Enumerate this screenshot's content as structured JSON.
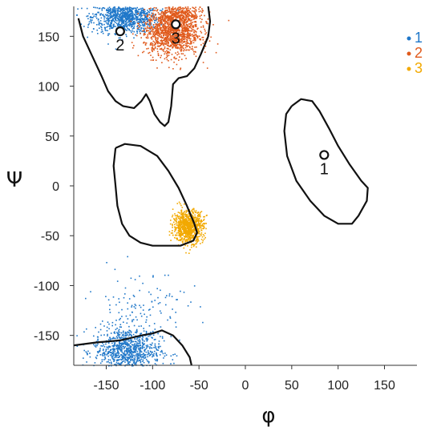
{
  "chart_data": {
    "type": "scatter",
    "title": "",
    "xlabel": "φ",
    "ylabel": "Ψ",
    "xlim": [
      -185,
      185
    ],
    "ylim": [
      -180,
      180
    ],
    "xticks": [
      -150,
      -100,
      -50,
      0,
      50,
      100,
      150
    ],
    "yticks": [
      150,
      100,
      50,
      0,
      -50,
      -100,
      -150
    ],
    "grid": false,
    "legend_position": "top-right",
    "series": [
      {
        "name": "1",
        "color": "#1f77c9",
        "clusters": [
          {
            "center": [
              -130,
              170
            ],
            "spread": [
              18,
              8
            ],
            "count": 950
          },
          {
            "center": [
              -128,
              -165
            ],
            "spread": [
              18,
              12
            ],
            "count": 900
          },
          {
            "center": [
              -115,
              -120
            ],
            "spread": [
              25,
              20
            ],
            "count": 120
          }
        ]
      },
      {
        "name": "2",
        "color": "#e05a1c",
        "clusters": [
          {
            "center": [
              -80,
              155
            ],
            "spread": [
              15,
              12
            ],
            "count": 1300
          },
          {
            "center": [
              -70,
              172
            ],
            "spread": [
              12,
              6
            ],
            "count": 300
          }
        ]
      },
      {
        "name": "3",
        "color": "#f2a900",
        "clusters": [
          {
            "center": [
              -62,
              -40
            ],
            "spread": [
              8,
              8
            ],
            "count": 900
          }
        ]
      }
    ],
    "markers": [
      {
        "label": "1",
        "x": 85,
        "y": 31
      },
      {
        "label": "2",
        "x": -135,
        "y": 155
      },
      {
        "label": "3",
        "x": -75,
        "y": 162
      }
    ],
    "contours": [
      [
        [
          -185,
          -160
        ],
        [
          -160,
          -157
        ],
        [
          -135,
          -155
        ],
        [
          -112,
          -150
        ],
        [
          -100,
          -148
        ],
        [
          -90,
          -145
        ],
        [
          -78,
          -150
        ],
        [
          -68,
          -160
        ],
        [
          -60,
          -172
        ],
        [
          -58,
          -180
        ]
      ],
      [
        [
          -180,
          168
        ],
        [
          -175,
          150
        ],
        [
          -165,
          130
        ],
        [
          -155,
          110
        ],
        [
          -148,
          95
        ],
        [
          -140,
          85
        ],
        [
          -132,
          80
        ],
        [
          -120,
          78
        ],
        [
          -112,
          85
        ],
        [
          -107,
          92
        ],
        [
          -103,
          85
        ],
        [
          -98,
          72
        ],
        [
          -92,
          64
        ],
        [
          -87,
          60
        ],
        [
          -83,
          64
        ],
        [
          -80,
          80
        ],
        [
          -78,
          102
        ],
        [
          -72,
          108
        ],
        [
          -63,
          110
        ],
        [
          -55,
          118
        ],
        [
          -48,
          132
        ],
        [
          -40,
          150
        ],
        [
          -38,
          165
        ],
        [
          -40,
          180
        ]
      ],
      [
        [
          -140,
          38
        ],
        [
          -130,
          42
        ],
        [
          -113,
          40
        ],
        [
          -95,
          30
        ],
        [
          -83,
          15
        ],
        [
          -72,
          -2
        ],
        [
          -63,
          -20
        ],
        [
          -55,
          -38
        ],
        [
          -52,
          -47
        ],
        [
          -56,
          -55
        ],
        [
          -70,
          -60
        ],
        [
          -100,
          -60
        ],
        [
          -113,
          -57
        ],
        [
          -125,
          -50
        ],
        [
          -133,
          -38
        ],
        [
          -138,
          -20
        ],
        [
          -140,
          0
        ],
        [
          -142,
          20
        ],
        [
          -140,
          38
        ]
      ],
      [
        [
          50,
          80
        ],
        [
          60,
          87
        ],
        [
          72,
          85
        ],
        [
          80,
          75
        ],
        [
          90,
          58
        ],
        [
          100,
          40
        ],
        [
          112,
          22
        ],
        [
          125,
          5
        ],
        [
          132,
          -2
        ],
        [
          131,
          -15
        ],
        [
          122,
          -30
        ],
        [
          115,
          -38
        ],
        [
          100,
          -38
        ],
        [
          85,
          -30
        ],
        [
          70,
          -15
        ],
        [
          55,
          5
        ],
        [
          45,
          30
        ],
        [
          42,
          55
        ],
        [
          44,
          72
        ],
        [
          50,
          80
        ]
      ]
    ]
  }
}
